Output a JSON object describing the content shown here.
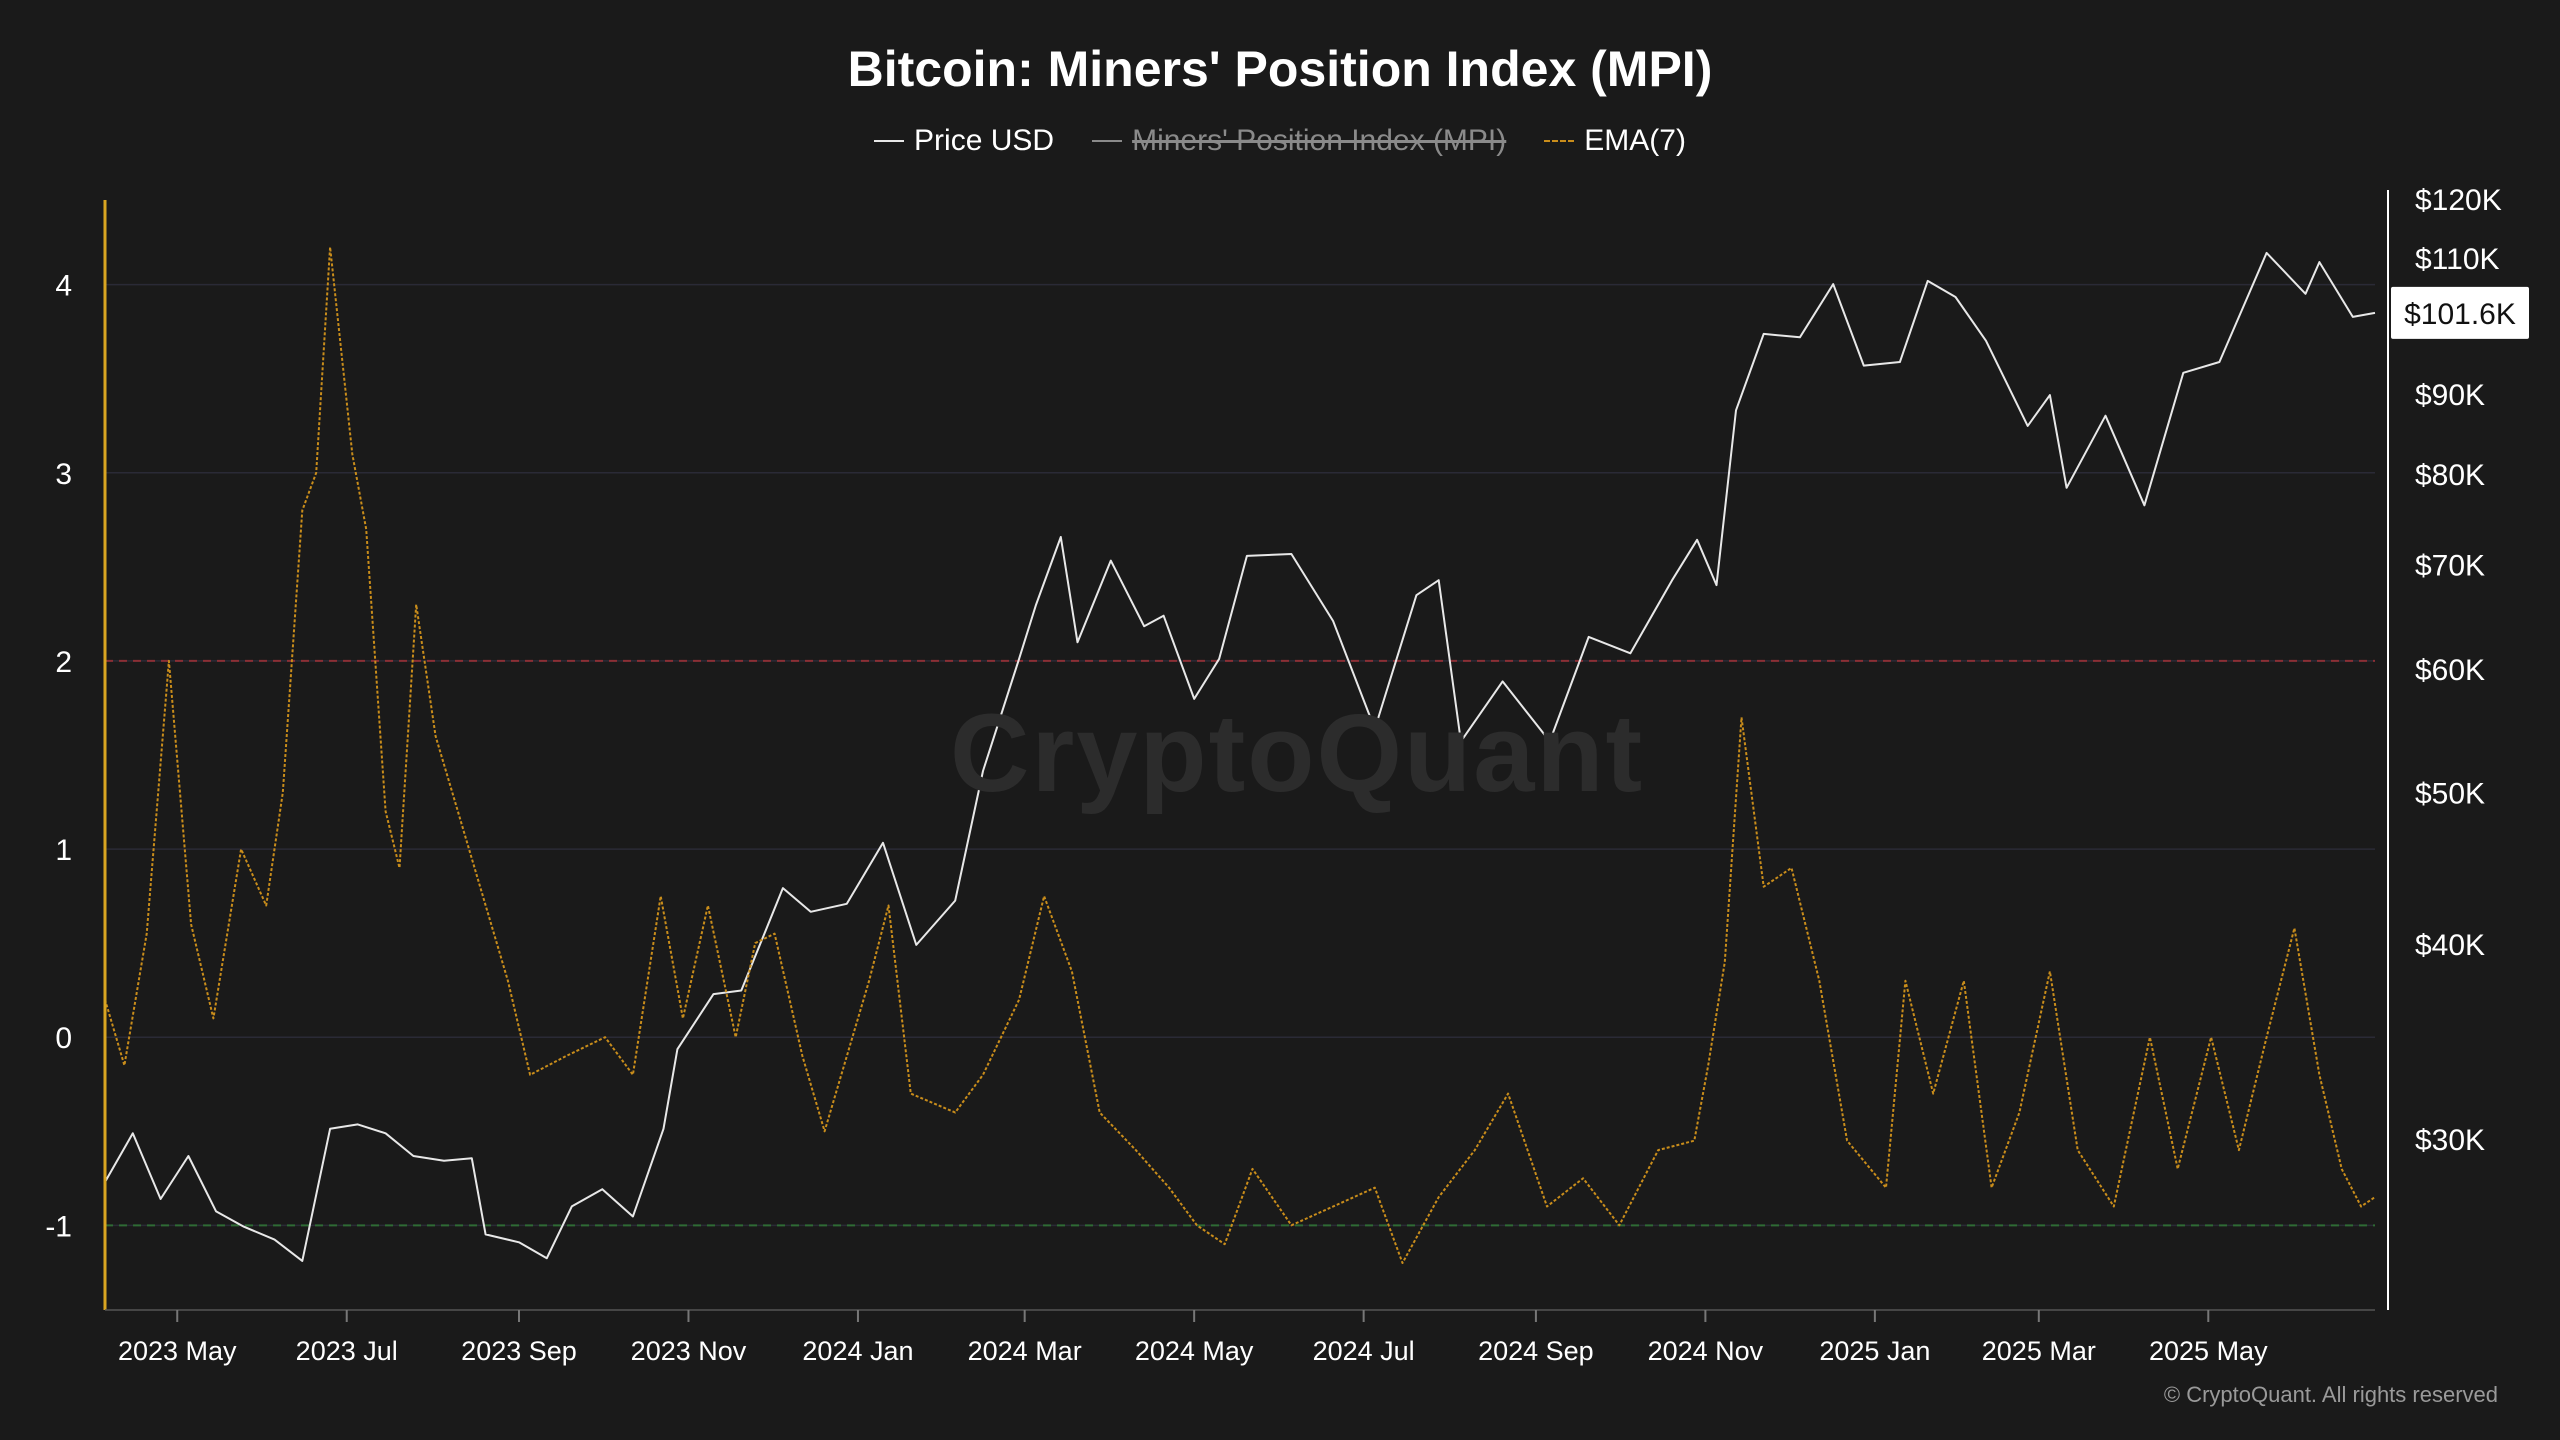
{
  "chart_data": {
    "type": "line",
    "title": "Bitcoin: Miners' Position Index (MPI)",
    "legend": [
      {
        "name": "Price USD",
        "style": "solid",
        "color": "#e8e8e8",
        "enabled": true
      },
      {
        "name": "Miners' Position Index (MPI)",
        "style": "solid",
        "color": "#8a8a8a",
        "enabled": false
      },
      {
        "name": "EMA(7)",
        "style": "dashed",
        "color": "#c98d1b",
        "enabled": true
      }
    ],
    "legend_position": "top-center",
    "x_axis": {
      "ticks": [
        "2023 May",
        "2023 Jul",
        "2023 Sep",
        "2023 Nov",
        "2024 Jan",
        "2024 Mar",
        "2024 May",
        "2024 Jul",
        "2024 Sep",
        "2024 Nov",
        "2025 Jan",
        "2025 Mar",
        "2025 May"
      ],
      "range": [
        "2023-04-05",
        "2025-06-30"
      ]
    },
    "y_left": {
      "label": "",
      "ticks": [
        "4",
        "3",
        "2",
        "1",
        "0",
        "-1"
      ],
      "range": [
        -1.45,
        4.45
      ]
    },
    "y_right": {
      "label": "",
      "scale": "log",
      "ticks": [
        "$120K",
        "$110K",
        "$90K",
        "$80K",
        "$70K",
        "$60K",
        "$50K",
        "$40K",
        "$30K"
      ],
      "current_value_label": "$101.6K"
    },
    "reference_lines": [
      {
        "value": 2,
        "color": "#8b2f35",
        "style": "dashed"
      },
      {
        "value": -1,
        "color": "#2f6b35",
        "style": "dashed"
      }
    ],
    "grid": true,
    "series": [
      {
        "name": "Price USD",
        "axis": "right",
        "points": [
          [
            "2023-04-05",
            28200
          ],
          [
            "2023-04-15",
            30300
          ],
          [
            "2023-04-25",
            27500
          ],
          [
            "2023-05-05",
            29300
          ],
          [
            "2023-05-15",
            27000
          ],
          [
            "2023-05-25",
            26400
          ],
          [
            "2023-06-05",
            25900
          ],
          [
            "2023-06-15",
            25100
          ],
          [
            "2023-06-25",
            30500
          ],
          [
            "2023-07-05",
            30700
          ],
          [
            "2023-07-15",
            30300
          ],
          [
            "2023-07-25",
            29300
          ],
          [
            "2023-08-05",
            29100
          ],
          [
            "2023-08-15",
            29200
          ],
          [
            "2023-08-20",
            26100
          ],
          [
            "2023-09-01",
            25800
          ],
          [
            "2023-09-11",
            25200
          ],
          [
            "2023-09-20",
            27200
          ],
          [
            "2023-10-01",
            27900
          ],
          [
            "2023-10-12",
            26800
          ],
          [
            "2023-10-23",
            30500
          ],
          [
            "2023-10-28",
            34300
          ],
          [
            "2023-11-10",
            37200
          ],
          [
            "2023-11-20",
            37400
          ],
          [
            "2023-12-05",
            43500
          ],
          [
            "2023-12-15",
            42000
          ],
          [
            "2023-12-28",
            42500
          ],
          [
            "2024-01-10",
            46500
          ],
          [
            "2024-01-22",
            40000
          ],
          [
            "2024-02-05",
            42700
          ],
          [
            "2024-02-15",
            51700
          ],
          [
            "2024-02-28",
            61000
          ],
          [
            "2024-03-05",
            66000
          ],
          [
            "2024-03-14",
            73000
          ],
          [
            "2024-03-20",
            62500
          ],
          [
            "2024-04-01",
            70500
          ],
          [
            "2024-04-13",
            64000
          ],
          [
            "2024-04-20",
            65000
          ],
          [
            "2024-05-01",
            57500
          ],
          [
            "2024-05-10",
            61000
          ],
          [
            "2024-05-20",
            71000
          ],
          [
            "2024-06-05",
            71200
          ],
          [
            "2024-06-20",
            64500
          ],
          [
            "2024-07-05",
            55000
          ],
          [
            "2024-07-20",
            67000
          ],
          [
            "2024-07-28",
            68500
          ],
          [
            "2024-08-05",
            54000
          ],
          [
            "2024-08-20",
            59000
          ],
          [
            "2024-09-06",
            54000
          ],
          [
            "2024-09-20",
            63000
          ],
          [
            "2024-10-05",
            61500
          ],
          [
            "2024-10-20",
            68500
          ],
          [
            "2024-10-29",
            72700
          ],
          [
            "2024-11-05",
            68000
          ],
          [
            "2024-11-12",
            88000
          ],
          [
            "2024-11-22",
            98500
          ],
          [
            "2024-12-05",
            98000
          ],
          [
            "2024-12-17",
            106000
          ],
          [
            "2024-12-28",
            94000
          ],
          [
            "2025-01-10",
            94500
          ],
          [
            "2025-01-20",
            106500
          ],
          [
            "2025-01-30",
            104000
          ],
          [
            "2025-02-10",
            97500
          ],
          [
            "2025-02-25",
            86000
          ],
          [
            "2025-03-05",
            90000
          ],
          [
            "2025-03-11",
            78500
          ],
          [
            "2025-03-25",
            87300
          ],
          [
            "2025-04-08",
            76500
          ],
          [
            "2025-04-22",
            93000
          ],
          [
            "2025-05-05",
            94500
          ],
          [
            "2025-05-22",
            111000
          ],
          [
            "2025-06-05",
            104500
          ],
          [
            "2025-06-10",
            109500
          ],
          [
            "2025-06-22",
            101000
          ],
          [
            "2025-06-30",
            101600
          ]
        ]
      },
      {
        "name": "EMA(7)",
        "axis": "left",
        "points": [
          [
            "2023-04-05",
            0.2
          ],
          [
            "2023-04-12",
            -0.15
          ],
          [
            "2023-04-20",
            0.55
          ],
          [
            "2023-04-28",
            2.0
          ],
          [
            "2023-05-06",
            0.6
          ],
          [
            "2023-05-14",
            0.1
          ],
          [
            "2023-05-24",
            1.0
          ],
          [
            "2023-06-02",
            0.7
          ],
          [
            "2023-06-08",
            1.3
          ],
          [
            "2023-06-15",
            2.8
          ],
          [
            "2023-06-20",
            3.0
          ],
          [
            "2023-06-25",
            4.2
          ],
          [
            "2023-07-03",
            3.1
          ],
          [
            "2023-07-08",
            2.7
          ],
          [
            "2023-07-15",
            1.2
          ],
          [
            "2023-07-20",
            0.9
          ],
          [
            "2023-07-26",
            2.3
          ],
          [
            "2023-08-02",
            1.6
          ],
          [
            "2023-08-10",
            1.2
          ],
          [
            "2023-08-18",
            0.8
          ],
          [
            "2023-08-28",
            0.3
          ],
          [
            "2023-09-05",
            -0.2
          ],
          [
            "2023-09-18",
            -0.1
          ],
          [
            "2023-10-02",
            0.0
          ],
          [
            "2023-10-12",
            -0.2
          ],
          [
            "2023-10-22",
            0.75
          ],
          [
            "2023-10-30",
            0.1
          ],
          [
            "2023-11-08",
            0.7
          ],
          [
            "2023-11-18",
            0.0
          ],
          [
            "2023-11-25",
            0.5
          ],
          [
            "2023-12-02",
            0.55
          ],
          [
            "2023-12-12",
            -0.1
          ],
          [
            "2023-12-20",
            -0.5
          ],
          [
            "2024-01-05",
            0.3
          ],
          [
            "2024-01-12",
            0.7
          ],
          [
            "2024-01-20",
            -0.3
          ],
          [
            "2024-02-05",
            -0.4
          ],
          [
            "2024-02-15",
            -0.2
          ],
          [
            "2024-02-28",
            0.2
          ],
          [
            "2024-03-08",
            0.75
          ],
          [
            "2024-03-18",
            0.35
          ],
          [
            "2024-03-28",
            -0.4
          ],
          [
            "2024-04-10",
            -0.6
          ],
          [
            "2024-04-22",
            -0.8
          ],
          [
            "2024-05-02",
            -1.0
          ],
          [
            "2024-05-12",
            -1.1
          ],
          [
            "2024-05-22",
            -0.7
          ],
          [
            "2024-06-05",
            -1.0
          ],
          [
            "2024-06-20",
            -0.9
          ],
          [
            "2024-07-05",
            -0.8
          ],
          [
            "2024-07-15",
            -1.2
          ],
          [
            "2024-07-28",
            -0.85
          ],
          [
            "2024-08-10",
            -0.6
          ],
          [
            "2024-08-22",
            -0.3
          ],
          [
            "2024-09-05",
            -0.9
          ],
          [
            "2024-09-18",
            -0.75
          ],
          [
            "2024-10-01",
            -1.0
          ],
          [
            "2024-10-15",
            -0.6
          ],
          [
            "2024-10-28",
            -0.55
          ],
          [
            "2024-11-02",
            -0.15
          ],
          [
            "2024-11-08",
            0.4
          ],
          [
            "2024-11-14",
            1.7
          ],
          [
            "2024-11-22",
            0.8
          ],
          [
            "2024-12-02",
            0.9
          ],
          [
            "2024-12-12",
            0.3
          ],
          [
            "2024-12-22",
            -0.55
          ],
          [
            "2025-01-05",
            -0.8
          ],
          [
            "2025-01-12",
            0.3
          ],
          [
            "2025-01-22",
            -0.3
          ],
          [
            "2025-02-02",
            0.3
          ],
          [
            "2025-02-12",
            -0.8
          ],
          [
            "2025-02-22",
            -0.4
          ],
          [
            "2025-03-05",
            0.35
          ],
          [
            "2025-03-15",
            -0.6
          ],
          [
            "2025-03-28",
            -0.9
          ],
          [
            "2025-04-10",
            0.0
          ],
          [
            "2025-04-20",
            -0.7
          ],
          [
            "2025-05-02",
            0.0
          ],
          [
            "2025-05-12",
            -0.6
          ],
          [
            "2025-05-22",
            0.0
          ],
          [
            "2025-06-01",
            0.58
          ],
          [
            "2025-06-10",
            -0.2
          ],
          [
            "2025-06-18",
            -0.7
          ],
          [
            "2025-06-25",
            -0.9
          ],
          [
            "2025-06-30",
            -0.85
          ]
        ]
      }
    ]
  },
  "watermark": "CryptoQuant",
  "copyright": "© CryptoQuant. All rights reserved",
  "colors": {
    "background": "#1a1a1a",
    "price_line": "#e8e8e8",
    "ema_line": "#c98d1b",
    "left_axis": "#d9a521",
    "right_axis": "#ffffff",
    "grid": "#2a2a36"
  }
}
